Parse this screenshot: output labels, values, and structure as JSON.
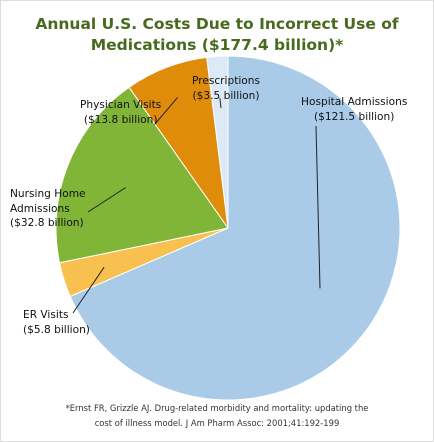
{
  "chart_data": {
    "type": "pie",
    "title": "Annual U.S. Costs Due to Incorrect Use of Medications ($177.4 billion)*",
    "title_lines": [
      "Annual U.S. Costs Due to Incorrect Use of",
      "Medications ($177.4 billion)*"
    ],
    "unit": "billion USD",
    "total": 177.4,
    "slices": [
      {
        "name": "Hospital Admissions",
        "value": 121.5,
        "color": "#a9cbe8",
        "label_lines": [
          "Hospital Admissions",
          "($121.5 billion)"
        ]
      },
      {
        "name": "ER Visits",
        "value": 5.8,
        "color": "#f7c04f",
        "label_lines": [
          "ER Visits",
          "($5.8 billion)"
        ]
      },
      {
        "name": "Nursing Home Admissions",
        "value": 32.8,
        "color": "#80b537",
        "label_lines": [
          "Nursing Home",
          "Admissions",
          "($32.8 billion)"
        ]
      },
      {
        "name": "Physician Visits",
        "value": 13.8,
        "color": "#e08c0b",
        "label_lines": [
          "Physician Visits",
          "($13.8 billion)"
        ]
      },
      {
        "name": "Prescriptions",
        "value": 3.5,
        "color": "#dce9f6",
        "label_lines": [
          "Prescriptions",
          "($3.5 billion)"
        ]
      }
    ],
    "start": "12 o'clock",
    "direction": "clockwise",
    "legend": "none (leader-line labels)"
  },
  "footnote_lines": [
    "*Ernst FR, Grizzle AJ. Drug-related morbidity and mortality: updating the",
    "cost of illness model. J Am Pharm Assoc: 2001;41:192-199"
  ],
  "colors": {
    "title": "#466a1e",
    "border": "#dddddd",
    "leader_line": "#222222"
  }
}
